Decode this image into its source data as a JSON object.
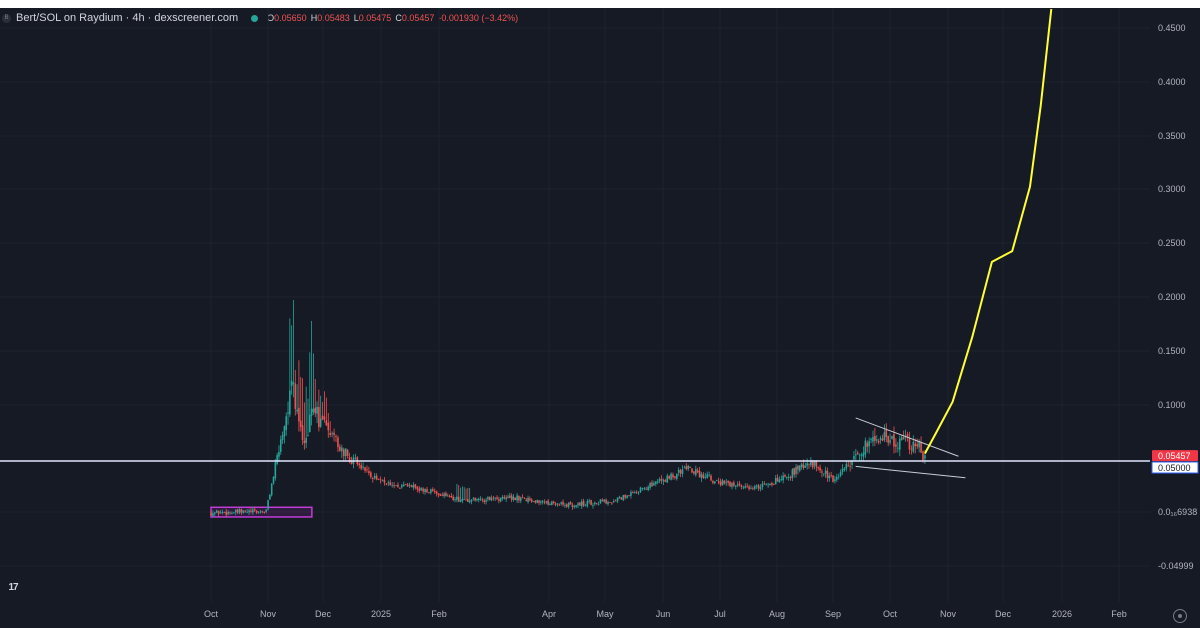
{
  "header": {
    "title": "Bert/SOL on Raydium · 4h · dexscreener.com",
    "ohlc": {
      "o_label": "O",
      "o": "0.05650",
      "h_label": "H",
      "h": "0.05483",
      "l_label": "L",
      "l": "0.05475",
      "c_label": "C",
      "c": "0.05457",
      "change": "-0.001930 (−3.42%)"
    }
  },
  "colors": {
    "background": "#161a25",
    "up": "#26a69a",
    "down": "#ef5350",
    "forecast": "#ffff33",
    "highlight_box": "#c13dd6",
    "horizontal_line": "#e0e6ff"
  },
  "icons": {
    "logo": "tradingview-logo-icon",
    "settings": "gear-icon"
  },
  "chart_data": {
    "type": "candlestick",
    "x_tick_labels": [
      "Oct",
      "Nov",
      "Dec",
      "2025",
      "Feb",
      "Apr",
      "May",
      "Jun",
      "Jul",
      "Aug",
      "Sep",
      "Oct",
      "Nov",
      "Dec",
      "2026",
      "Feb"
    ],
    "y_tick_labels": [
      "0.4500",
      "0.4000",
      "0.3500",
      "0.3000",
      "0.2500",
      "0.2000",
      "0.1500",
      "0.1000",
      "0.0₁₆6938",
      "-0.04999"
    ],
    "ylim": [
      -0.06,
      0.47
    ],
    "price_label": "0.05457",
    "level_label": "0.05000",
    "horizontal_level": 0.05,
    "price_path": [
      [
        2024.75,
        0.002
      ],
      [
        2024.83,
        0.003
      ],
      [
        2024.87,
        0.12
      ],
      [
        2024.88,
        0.09
      ],
      [
        2024.89,
        0.065
      ],
      [
        2024.9,
        0.1
      ],
      [
        2024.92,
        0.08
      ],
      [
        2024.96,
        0.05
      ],
      [
        2025.0,
        0.03
      ],
      [
        2025.05,
        0.025
      ],
      [
        2025.12,
        0.013
      ],
      [
        2025.2,
        0.016
      ],
      [
        2025.28,
        0.009
      ],
      [
        2025.35,
        0.014
      ],
      [
        2025.42,
        0.033
      ],
      [
        2025.45,
        0.043
      ],
      [
        2025.5,
        0.03
      ],
      [
        2025.55,
        0.024
      ],
      [
        2025.6,
        0.036
      ],
      [
        2025.63,
        0.05
      ],
      [
        2025.67,
        0.032
      ],
      [
        2025.7,
        0.053
      ],
      [
        2025.73,
        0.075
      ],
      [
        2025.76,
        0.068
      ],
      [
        2025.79,
        0.065
      ],
      [
        2025.8,
        0.052
      ]
    ],
    "forecast_path": [
      [
        2025.8,
        0.057
      ],
      [
        2025.815,
        0.075
      ],
      [
        2025.84,
        0.105
      ],
      [
        2025.87,
        0.165
      ],
      [
        2025.9,
        0.235
      ],
      [
        2025.93,
        0.245
      ],
      [
        2025.955,
        0.305
      ],
      [
        2025.97,
        0.38
      ],
      [
        2025.985,
        0.47
      ]
    ],
    "channel": [
      [
        [
          2025.7,
          0.09
        ],
        [
          2025.805,
          0.06
        ]
      ],
      [
        [
          2025.7,
          0.045
        ],
        [
          2025.815,
          0.04
        ]
      ]
    ],
    "highlight_range": {
      "x": [
        2024.75,
        2024.9
      ],
      "y": [
        -0.002,
        0.007
      ]
    },
    "legend": "none"
  }
}
